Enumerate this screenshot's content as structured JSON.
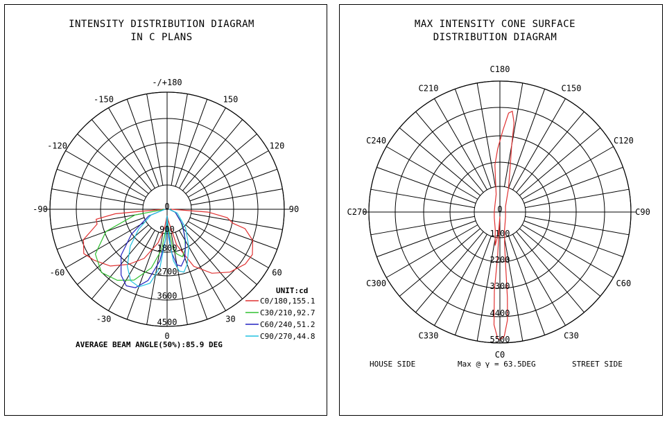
{
  "chart_data": [
    {
      "type": "polar-line",
      "title_lines": [
        "INTENSITY DISTRIBUTION DIAGRAM",
        "IN C PLANS"
      ],
      "angle_labels": [
        "-/+180",
        "150",
        "120",
        "90",
        "60",
        "30",
        "0",
        "-30",
        "-60",
        "-90",
        "-120",
        "-150"
      ],
      "radial_labels": [
        "0",
        "900",
        "1800",
        "2700",
        "3600",
        "4500"
      ],
      "unit_label": "UNIT:cd",
      "average_beam_text": "AVERAGE BEAM ANGLE(50%):85.9 DEG",
      "rlim": [
        0,
        5400
      ],
      "series": [
        {
          "name": "C0/180,155.1",
          "color": "#e03030",
          "points": [
            [
              -90,
              200
            ],
            [
              -85,
              2400
            ],
            [
              -82,
              3300
            ],
            [
              -78,
              3300
            ],
            [
              -70,
              4100
            ],
            [
              -62,
              4350
            ],
            [
              -55,
              4100
            ],
            [
              -45,
              3700
            ],
            [
              -35,
              3100
            ],
            [
              -25,
              2500
            ],
            [
              -15,
              1600
            ],
            [
              -8,
              900
            ],
            [
              -3,
              400
            ],
            [
              0,
              300
            ],
            [
              5,
              500
            ],
            [
              15,
              1700
            ],
            [
              25,
              2900
            ],
            [
              35,
              3600
            ],
            [
              45,
              4100
            ],
            [
              55,
              4400
            ],
            [
              62,
              4450
            ],
            [
              70,
              4200
            ],
            [
              76,
              3700
            ],
            [
              78,
              3100
            ],
            [
              82,
              2800
            ],
            [
              86,
              1900
            ],
            [
              90,
              200
            ]
          ]
        },
        {
          "name": "C30/210,92.7",
          "color": "#30c030",
          "points": [
            [
              -90,
              100
            ],
            [
              -80,
              1500
            ],
            [
              -70,
              3000
            ],
            [
              -58,
              3900
            ],
            [
              -46,
              4200
            ],
            [
              -35,
              4000
            ],
            [
              -25,
              3600
            ],
            [
              -15,
              2800
            ],
            [
              -8,
              1900
            ],
            [
              -3,
              900
            ],
            [
              0,
              300
            ],
            [
              4,
              800
            ],
            [
              8,
              1700
            ],
            [
              12,
              2100
            ],
            [
              18,
              2300
            ],
            [
              25,
              2000
            ],
            [
              35,
              1400
            ],
            [
              50,
              800
            ],
            [
              70,
              400
            ],
            [
              90,
              100
            ]
          ]
        },
        {
          "name": "C60/240,51.2",
          "color": "#2020c0",
          "points": [
            [
              -90,
              100
            ],
            [
              -70,
              900
            ],
            [
              -55,
              2000
            ],
            [
              -45,
              3000
            ],
            [
              -35,
              3700
            ],
            [
              -28,
              4000
            ],
            [
              -22,
              3900
            ],
            [
              -15,
              3400
            ],
            [
              -8,
              2400
            ],
            [
              -3,
              1400
            ],
            [
              0,
              300
            ],
            [
              3,
              1000
            ],
            [
              6,
              2000
            ],
            [
              10,
              2600
            ],
            [
              14,
              2700
            ],
            [
              20,
              2400
            ],
            [
              30,
              1700
            ],
            [
              45,
              1000
            ],
            [
              70,
              400
            ],
            [
              90,
              100
            ]
          ]
        },
        {
          "name": "C90/270,44.8",
          "color": "#20c0e0",
          "points": [
            [
              -90,
              100
            ],
            [
              -70,
              800
            ],
            [
              -55,
              1600
            ],
            [
              -45,
              2400
            ],
            [
              -35,
              3200
            ],
            [
              -27,
              3700
            ],
            [
              -20,
              3800
            ],
            [
              -13,
              3500
            ],
            [
              -7,
              2700
            ],
            [
              -3,
              1400
            ],
            [
              0,
              300
            ],
            [
              3,
              1300
            ],
            [
              7,
              2400
            ],
            [
              11,
              2900
            ],
            [
              15,
              3000
            ],
            [
              20,
              2700
            ],
            [
              30,
              2000
            ],
            [
              45,
              1200
            ],
            [
              70,
              500
            ],
            [
              90,
              100
            ]
          ]
        }
      ]
    },
    {
      "type": "polar-line",
      "title_lines": [
        "MAX INTENSITY CONE SURFACE",
        "DISTRIBUTION DIAGRAM"
      ],
      "angle_labels": [
        "C180",
        "C150",
        "C120",
        "C90",
        "C60",
        "C30",
        "C0",
        "C330",
        "C300",
        "C270",
        "C240",
        "C210"
      ],
      "radial_labels": [
        "0",
        "1100",
        "2200",
        "3300",
        "4400",
        "5500"
      ],
      "house_side": "HOUSE SIDE",
      "street_side": "STREET SIDE",
      "max_text": "Max @ γ = 63.5DEG",
      "rlim": [
        0,
        5800
      ],
      "series": [
        {
          "color": "#e03030",
          "points": [
            [
              0,
              200
            ],
            [
              -3,
              2000
            ],
            [
              -4,
              3500
            ],
            [
              -3,
              5000
            ],
            [
              -1,
              5600
            ],
            [
              0,
              5650
            ],
            [
              2,
              5500
            ],
            [
              4,
              4800
            ],
            [
              5,
              3800
            ],
            [
              6,
              2500
            ],
            [
              8,
              1500
            ],
            [
              15,
              800
            ],
            [
              45,
              350
            ],
            [
              90,
              250
            ],
            [
              135,
              350
            ],
            [
              160,
              1100
            ],
            [
              167,
              2000
            ],
            [
              170,
              3000
            ],
            [
              171,
              4000
            ],
            [
              173,
              4500
            ],
            [
              175,
              4400
            ],
            [
              178,
              3600
            ],
            [
              182,
              2800
            ],
            [
              186,
              2100
            ],
            [
              188,
              1400
            ],
            [
              192,
              800
            ],
            [
              220,
              350
            ],
            [
              270,
              250
            ],
            [
              315,
              350
            ],
            [
              345,
              800
            ],
            [
              352,
              1500
            ],
            [
              356,
              900
            ],
            [
              360,
              200
            ]
          ]
        }
      ]
    }
  ]
}
